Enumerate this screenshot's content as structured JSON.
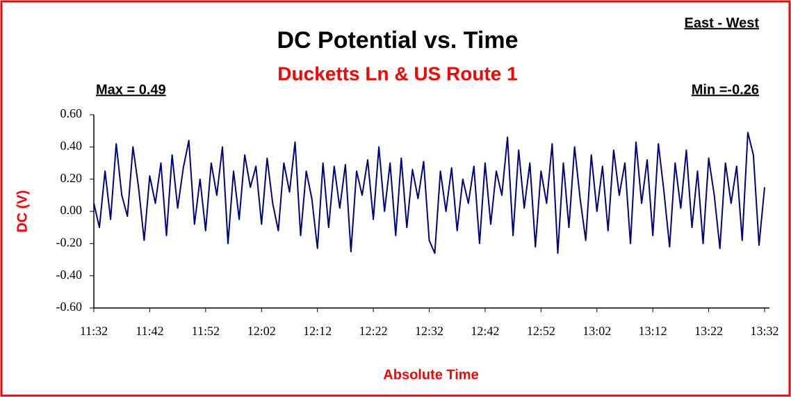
{
  "chart_data": {
    "type": "line",
    "title": "DC Potential vs. Time",
    "subtitle": "Ducketts Ln & US Route 1",
    "annotations": [
      "East - West",
      "Max = 0.49",
      "Min =-0.26"
    ],
    "y_label": "DC (V)",
    "x_label": "Absolute Time",
    "categories": [
      "11:32",
      null,
      null,
      null,
      null,
      null,
      null,
      null,
      null,
      null,
      "11:42",
      null,
      null,
      null,
      null,
      null,
      null,
      null,
      null,
      null,
      "11:52",
      null,
      null,
      null,
      null,
      null,
      null,
      null,
      null,
      null,
      "12:02",
      null,
      null,
      null,
      null,
      null,
      null,
      null,
      null,
      null,
      "12:12",
      null,
      null,
      null,
      null,
      null,
      null,
      null,
      null,
      null,
      "12:22",
      null,
      null,
      null,
      null,
      null,
      null,
      null,
      null,
      null,
      "12:32",
      null,
      null,
      null,
      null,
      null,
      null,
      null,
      null,
      null,
      "12:42",
      null,
      null,
      null,
      null,
      null,
      null,
      null,
      null,
      null,
      "12:52",
      null,
      null,
      null,
      null,
      null,
      null,
      null,
      null,
      null,
      "13:02",
      null,
      null,
      null,
      null,
      null,
      null,
      null,
      null,
      null,
      "13:12",
      null,
      null,
      null,
      null,
      null,
      null,
      null,
      null,
      null,
      "13:22",
      null,
      null,
      null,
      null,
      null,
      null,
      null,
      null,
      null,
      "13:32"
    ],
    "series": [
      {
        "name": "DC",
        "color": "#000080",
        "values": [
          0.05,
          -0.1,
          0.25,
          -0.05,
          0.42,
          0.1,
          -0.03,
          0.4,
          0.15,
          -0.18,
          0.22,
          0.05,
          0.3,
          -0.15,
          0.35,
          0.02,
          0.27,
          0.44,
          -0.08,
          0.2,
          -0.12,
          0.3,
          0.1,
          0.4,
          -0.2,
          0.25,
          -0.05,
          0.35,
          0.15,
          0.28,
          -0.08,
          0.33,
          0.05,
          -0.12,
          0.3,
          0.12,
          0.43,
          -0.15,
          0.25,
          0.08,
          -0.23,
          0.3,
          -0.1,
          0.28,
          0.02,
          0.29,
          -0.25,
          0.25,
          0.1,
          0.32,
          -0.05,
          0.4,
          0.0,
          0.3,
          -0.15,
          0.33,
          -0.1,
          0.26,
          0.08,
          0.31,
          -0.18,
          -0.26,
          0.25,
          0.0,
          0.27,
          -0.12,
          0.2,
          0.05,
          0.28,
          -0.2,
          0.3,
          -0.08,
          0.25,
          0.1,
          0.46,
          -0.15,
          0.38,
          0.02,
          0.3,
          -0.22,
          0.25,
          0.05,
          0.42,
          -0.26,
          0.3,
          -0.1,
          0.4,
          0.08,
          -0.18,
          0.35,
          0.0,
          0.28,
          -0.12,
          0.38,
          0.1,
          0.3,
          -0.2,
          0.43,
          0.05,
          0.32,
          -0.15,
          0.42,
          0.12,
          -0.22,
          0.3,
          0.02,
          0.38,
          -0.1,
          0.25,
          -0.2,
          0.33,
          0.1,
          -0.23,
          0.3,
          0.05,
          0.28,
          -0.18,
          0.49,
          0.35,
          -0.21,
          0.15
        ]
      }
    ],
    "ylim": [
      -0.6,
      0.6
    ],
    "yticks": [
      {
        "value": -0.6,
        "label": "-0.60"
      },
      {
        "value": -0.4,
        "label": "-0.40"
      },
      {
        "value": -0.2,
        "label": "-0.20"
      },
      {
        "value": 0,
        "label": "0.00"
      },
      {
        "value": 0.2,
        "label": "0.20"
      },
      {
        "value": 0.4,
        "label": "0.40"
      },
      {
        "value": 0.6,
        "label": "0.60"
      }
    ],
    "grid": false
  }
}
